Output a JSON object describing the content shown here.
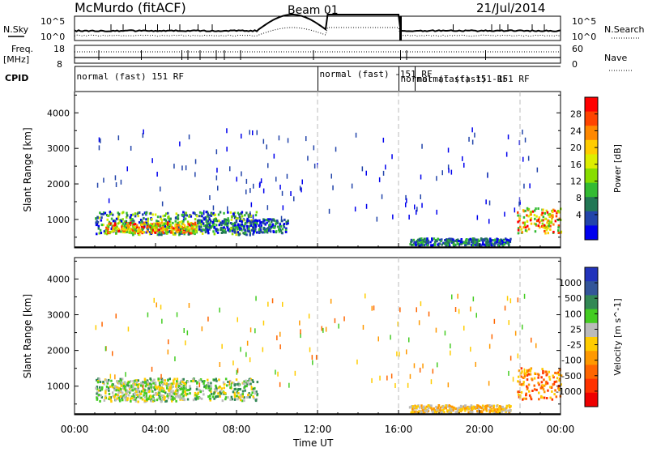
{
  "header": {
    "title": "McMurdo (fitACF)",
    "beam": "Beam 01",
    "date": "21/Jul/2014"
  },
  "side_labels": {
    "nsky": "N.Sky",
    "nsearch": "N.Search",
    "freq": "Freq.",
    "mhz": "[MHz]",
    "nave": "Nave",
    "cpid": "CPID"
  },
  "noise_axis": {
    "left": [
      "10^5",
      "10^0"
    ],
    "right": [
      "10^5",
      "10^0"
    ]
  },
  "freq_axis": {
    "left": [
      "18",
      "8"
    ],
    "right": [
      "60",
      "0"
    ]
  },
  "cpid_labels": [
    {
      "t": 0.1,
      "text": "normal (fast) 151 RF"
    },
    {
      "t": 12.1,
      "text": "normal (fast) -151 RF"
    },
    {
      "t": 16.1,
      "text": "normal (fast) 151 RF"
    },
    {
      "t": 16.9,
      "text": "normal (fast) -151 RF"
    }
  ],
  "time_axis": {
    "label": "Time UT",
    "ticks": [
      "00:00",
      "04:00",
      "08:00",
      "12:00",
      "16:00",
      "20:00",
      "00:00"
    ]
  },
  "chart_data": [
    {
      "type": "heatmap",
      "name": "power",
      "ylabel": "Slant Range [km]",
      "xlim": [
        0,
        24
      ],
      "ylim": [
        200,
        4600
      ],
      "yticks": [
        1000,
        2000,
        3000,
        4000
      ],
      "dashed_times": [
        12,
        16,
        22
      ],
      "colorbar": {
        "label": "Power [dB]",
        "ticks": [
          "28",
          "24",
          "20",
          "16",
          "12",
          "8",
          "4"
        ],
        "colors": [
          "#ff0000",
          "#ff4400",
          "#ff8800",
          "#ffcc00",
          "#ddee00",
          "#88dd00",
          "#33bb33",
          "#227755",
          "#2244aa",
          "#0000ee"
        ]
      },
      "regions": [
        {
          "t0": 1.0,
          "t1": 9.0,
          "r0": 550,
          "r1": 1200,
          "level": "mid"
        },
        {
          "t0": 1.5,
          "t1": 6.0,
          "r0": 600,
          "r1": 900,
          "level": "high"
        },
        {
          "t0": 6.0,
          "t1": 10.5,
          "r0": 600,
          "r1": 1000,
          "level": "low"
        },
        {
          "t0": 21.8,
          "t1": 24.0,
          "r0": 600,
          "r1": 1300,
          "level": "high"
        },
        {
          "t0": 16.5,
          "t1": 21.5,
          "r0": 250,
          "r1": 450,
          "level": "low"
        }
      ]
    },
    {
      "type": "heatmap",
      "name": "velocity",
      "ylabel": "Slant Range [km]",
      "xlim": [
        0,
        24
      ],
      "ylim": [
        200,
        4600
      ],
      "yticks": [
        1000,
        2000,
        3000,
        4000
      ],
      "dashed_times": [
        12,
        16,
        22
      ],
      "colorbar": {
        "label": "Velocity [m s^-1]",
        "ticks": [
          "1000",
          "500",
          "100",
          "25",
          "-25",
          "-100",
          "-500",
          "-1000"
        ],
        "colors": [
          "#2233bb",
          "#335599",
          "#338855",
          "#44cc22",
          "#bbbbbb",
          "#ffcc00",
          "#ff9900",
          "#ff6600",
          "#ff3300",
          "#ee0000"
        ]
      },
      "regions": [
        {
          "t0": 1.0,
          "t1": 9.0,
          "r0": 550,
          "r1": 1200,
          "level": "green"
        },
        {
          "t0": 1.8,
          "t1": 5.5,
          "r0": 600,
          "r1": 1150,
          "level": "grey"
        },
        {
          "t0": 21.8,
          "t1": 24.0,
          "r0": 600,
          "r1": 1500,
          "level": "orange"
        },
        {
          "t0": 16.5,
          "t1": 21.5,
          "r0": 250,
          "r1": 450,
          "level": "yellow"
        }
      ]
    }
  ]
}
